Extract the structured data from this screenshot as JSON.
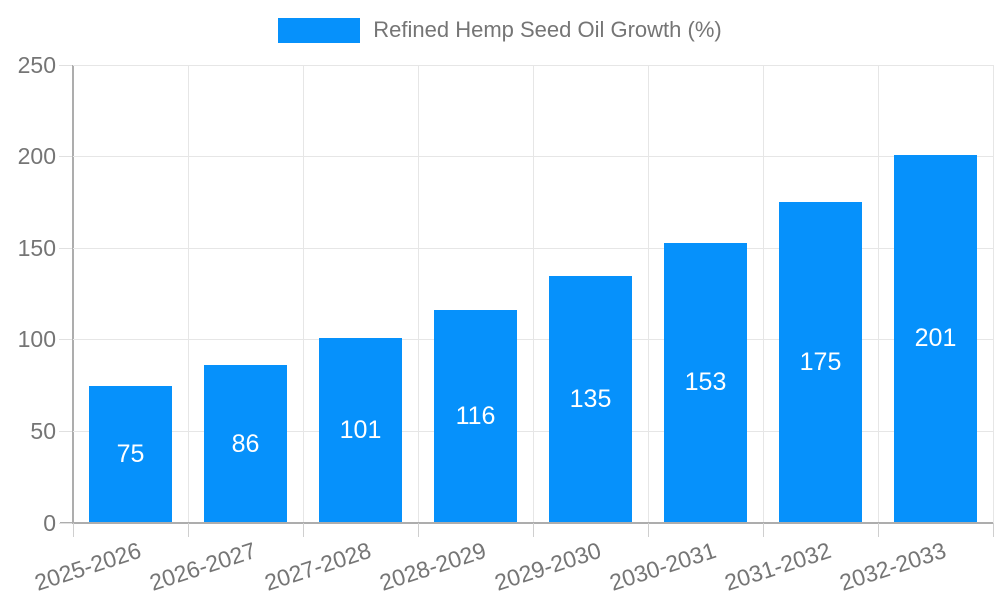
{
  "legend": {
    "label": "Refined Hemp Seed Oil Growth (%)",
    "swatch_color": "#0691fb"
  },
  "chart_data": {
    "type": "bar",
    "title": "",
    "series_name": "Refined Hemp Seed Oil Growth (%)",
    "categories": [
      "2025-2026",
      "2026-2027",
      "2027-2028",
      "2028-2029",
      "2029-2030",
      "2030-2031",
      "2031-2032",
      "2032-2033"
    ],
    "values": [
      75,
      86,
      101,
      116,
      135,
      153,
      175,
      201
    ],
    "xlabel": "",
    "ylabel": "",
    "ylim": [
      0,
      250
    ],
    "yticks": [
      0,
      50,
      100,
      150,
      200,
      250
    ],
    "bar_color": "#0691fb",
    "value_label_color": "#ffffff",
    "grid": true,
    "legend_position": "top"
  }
}
